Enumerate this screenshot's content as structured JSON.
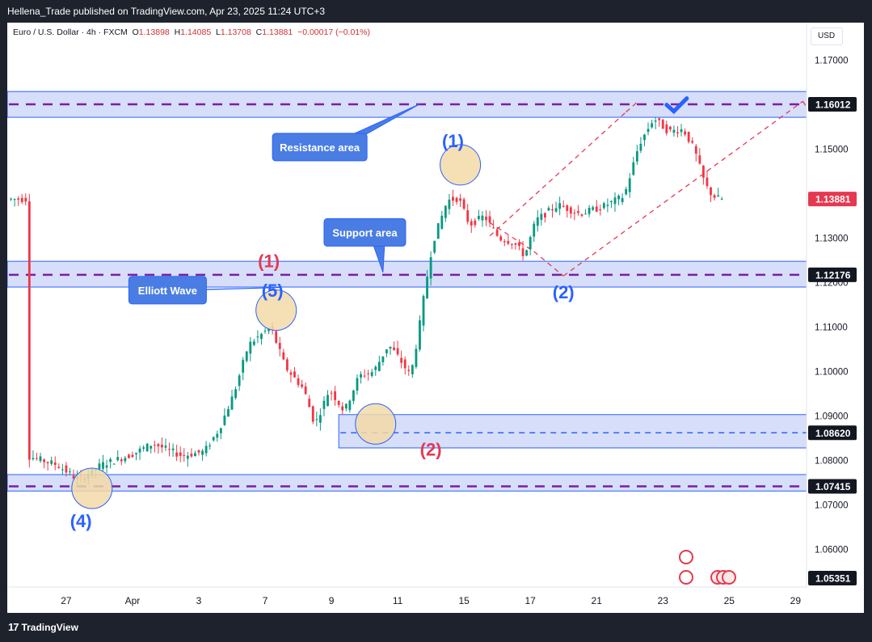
{
  "header": {
    "publisher_line": "Hellena_Trade published on TradingView.com, Apr 23, 2025 11:24 UTC+3"
  },
  "legend": {
    "symbol": "Euro / U.S. Dollar · 4h · FXCM",
    "open_label": "O",
    "open": "1.13898",
    "high_label": "H",
    "high": "1.14085",
    "low_label": "L",
    "low": "1.13708",
    "close_label": "C",
    "close": "1.13881",
    "change": "−0.00017 (−0.01%)"
  },
  "currency_button": "USD",
  "footer": {
    "brand": "TradingView"
  },
  "colors": {
    "zone_fill": "#c8d3f7",
    "zone_border": "#2962ff",
    "level_dash": "#7b1fa2",
    "channel_dash": "#e53950",
    "up_candle": "#089981",
    "down_candle": "#f23645",
    "wave_blue": "#2962ff",
    "wave_red": "#e53950",
    "callout_fill": "#4a7de3",
    "badge_red": "#e53950",
    "badge_dark": "#131722"
  },
  "chart_data": {
    "type": "candlestick",
    "symbol": "EURUSD",
    "timeframe": "4h",
    "y_ticks": [
      1.17,
      1.15,
      1.13,
      1.12,
      1.11,
      1.1,
      1.09,
      1.08,
      1.07,
      1.06
    ],
    "y_tick_labels": [
      "1.17000",
      "1.15000",
      "1.13000",
      "1.12000",
      "1.11000",
      "1.10000",
      "1.09000",
      "1.08000",
      "1.07000",
      "1.06000"
    ],
    "ylim": [
      1.0515,
      1.1785
    ],
    "x_tick_labels": [
      "27",
      "Apr",
      "3",
      "7",
      "9",
      "11",
      "15",
      "17",
      "21",
      "23",
      "25",
      "29"
    ],
    "x_tick_index": [
      10,
      28,
      46,
      64,
      82,
      100,
      118,
      136,
      154,
      172,
      190,
      208
    ],
    "x_range": [
      -6,
      211
    ],
    "current_price": "1.13881",
    "current_price_value": 1.13881,
    "price_labels": [
      {
        "text": "1.16012",
        "value": 1.16012,
        "style": "dark"
      },
      {
        "text": "1.13881",
        "value": 1.13881,
        "style": "red"
      },
      {
        "text": "1.12176",
        "value": 1.12176,
        "style": "dark"
      },
      {
        "text": "1.08620",
        "value": 1.0862,
        "style": "dark"
      },
      {
        "text": "1.07415",
        "value": 1.07415,
        "style": "dark"
      },
      {
        "text": "1.05351",
        "value": 1.05351,
        "style": "dark"
      }
    ],
    "zones": [
      {
        "name": "resistance",
        "top": 1.163,
        "bottom": 1.1572,
        "start": -6,
        "end": 211,
        "level": 1.16012,
        "level_style": "purple"
      },
      {
        "name": "support",
        "top": 1.1248,
        "bottom": 1.119,
        "start": -6,
        "end": 211,
        "level": 1.12176,
        "level_style": "purple"
      },
      {
        "name": "wave2-zone",
        "top": 1.0903,
        "bottom": 1.0828,
        "start": 84,
        "end": 211,
        "level": 1.0862,
        "level_style": "blue"
      },
      {
        "name": "wave4-zone",
        "top": 1.0768,
        "bottom": 1.0731,
        "start": -6,
        "end": 211,
        "level": 1.07415,
        "level_style": "purple"
      }
    ],
    "channel_lines": [
      {
        "x1": 125,
        "y1": 1.1305,
        "x2": 162,
        "y2": 1.1584
      },
      {
        "x1": 162,
        "y1": 1.1584,
        "x2": 165,
        "y2": 1.1606
      },
      {
        "x1": 145,
        "y1": 1.1215,
        "x2": 210,
        "y2": 1.1608
      },
      {
        "x1": 210,
        "y1": 1.1608,
        "x2": 212,
        "y2": 1.1582
      },
      {
        "x1": 125,
        "y1": 1.1335,
        "x2": 137,
        "y2": 1.127
      },
      {
        "x1": 137,
        "y1": 1.127,
        "x2": 145,
        "y2": 1.1215
      }
    ],
    "wave_labels": [
      {
        "text": "(1)",
        "x": 115,
        "y": 1.1505,
        "color": "blue"
      },
      {
        "text": "(2)",
        "x": 145,
        "y": 1.1165,
        "color": "blue"
      },
      {
        "text": "(1)",
        "x": 65,
        "y": 1.1235,
        "color": "red"
      },
      {
        "text": "(5)",
        "x": 66,
        "y": 1.1168,
        "color": "blue"
      },
      {
        "text": "(2)",
        "x": 109,
        "y": 1.0811,
        "color": "red"
      },
      {
        "text": "(4)",
        "x": 14,
        "y": 1.065,
        "color": "blue"
      }
    ],
    "circles": [
      {
        "x": 117,
        "y": 1.1465
      },
      {
        "x": 67,
        "y": 1.1138
      },
      {
        "x": 94,
        "y": 1.0882
      },
      {
        "x": 17,
        "y": 1.0737
      }
    ],
    "callouts": [
      {
        "text": "Resistance area",
        "x": 66,
        "y": 1.1505,
        "w": 117,
        "ptr_x": 106,
        "ptr_y": 1.1602
      },
      {
        "text": "Support area",
        "x": 80,
        "y": 1.1313,
        "w": 101,
        "ptr_x": 96,
        "ptr_y": 1.1223
      },
      {
        "text": "Elliott Wave",
        "x": 27,
        "y": 1.1183,
        "w": 96,
        "ptr_x": 68,
        "ptr_y": 1.1189
      }
    ],
    "candles": []
  }
}
